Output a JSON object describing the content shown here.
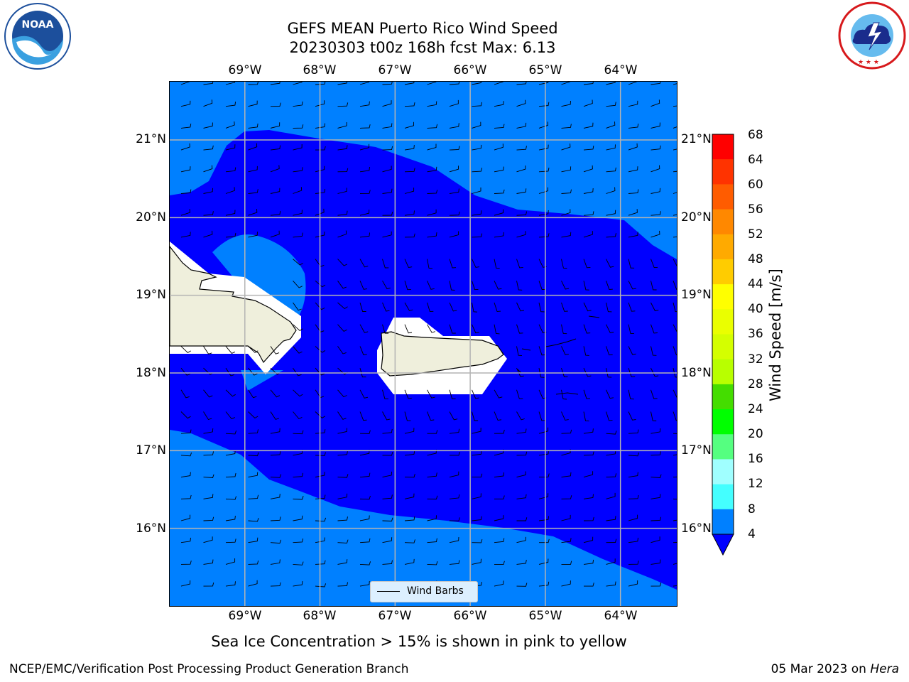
{
  "header": {
    "title_line1": "GEFS MEAN Puerto Rico Wind Speed",
    "title_line2": "20230303 t00z 168h fcst   Max: 6.13"
  },
  "logos": {
    "noaa": {
      "name": "NOAA",
      "ring_text": "NATIONAL OCEANIC AND ATMOSPHERIC ADMINISTRATION · U.S. DEPARTMENT OF COMMERCE",
      "color": "#1c4f9c"
    },
    "nws": {
      "ring_text": "NATIONAL WEATHER SERVICE",
      "color": "#d7191c"
    }
  },
  "map": {
    "lon_labels": [
      "69°W",
      "68°W",
      "67°W",
      "66°W",
      "65°W",
      "64°W"
    ],
    "lat_labels": [
      "21°N",
      "20°N",
      "19°N",
      "18°N",
      "17°N",
      "16°N"
    ],
    "lon_range": [
      -70.0,
      -63.25
    ],
    "lat_range": [
      15.0,
      21.75
    ],
    "gridlines": true,
    "colors": {
      "band_4_8": "#0080ff",
      "band_below_4": "#0000ff",
      "land": "#efefdc",
      "no_data": "#ffffff",
      "grid": "#b4b4b4"
    }
  },
  "legend": {
    "label": "Wind Barbs",
    "placement": "bottom-center"
  },
  "colorbar": {
    "label": "Wind Speed [m/s]",
    "ticks": [
      "68",
      "64",
      "60",
      "56",
      "52",
      "48",
      "44",
      "40",
      "36",
      "32",
      "28",
      "24",
      "20",
      "16",
      "12",
      "8",
      "4"
    ],
    "colors": [
      "#ff0000",
      "#ff3300",
      "#ff5c00",
      "#ff8800",
      "#ffaa00",
      "#ffcc00",
      "#ffff00",
      "#eaff00",
      "#d4ff00",
      "#b8ff00",
      "#44dd00",
      "#00ff00",
      "#55ff80",
      "#a0ffff",
      "#44ffff",
      "#00ffff",
      "#0080ff"
    ],
    "extend_color": "#0000ff"
  },
  "caption": "Sea Ice Concentration > 15% is shown in pink to yellow",
  "footer": {
    "left": "NCEP/EMC/Verification Post Processing Product Generation Branch",
    "date": "05 Mar 2023 on ",
    "machine": "Hera"
  }
}
